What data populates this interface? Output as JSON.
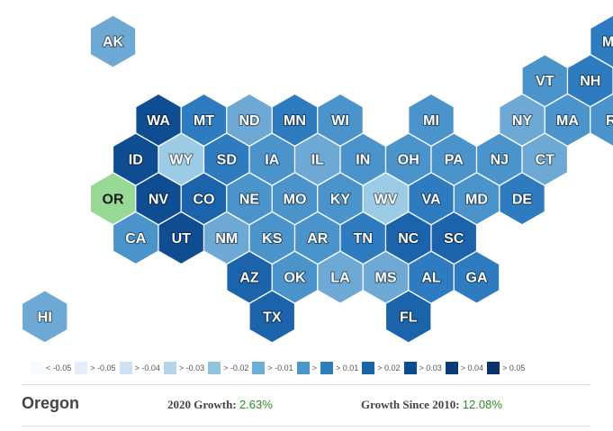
{
  "colors": {
    "c1": "#89b8dd",
    "c2": "#6ea8d5",
    "c3": "#4b93cb",
    "c4": "#2f7bbf",
    "c5": "#1b63ab",
    "c6": "#0f4d92",
    "c7": "#9ccbe6",
    "selected": "#98d996"
  },
  "states": [
    {
      "abbr": "AK",
      "row": 0,
      "col": 1,
      "color": "c2"
    },
    {
      "abbr": "ME",
      "row": 0,
      "col": 12,
      "color": "c4"
    },
    {
      "abbr": "VT",
      "row": 1,
      "col": 11,
      "color": "c3"
    },
    {
      "abbr": "NH",
      "row": 1,
      "col": 12,
      "color": "c4"
    },
    {
      "abbr": "WA",
      "row": 2,
      "col": 2,
      "color": "c6"
    },
    {
      "abbr": "MT",
      "row": 2,
      "col": 3,
      "color": "c4"
    },
    {
      "abbr": "ND",
      "row": 2,
      "col": 4,
      "color": "c2"
    },
    {
      "abbr": "MN",
      "row": 2,
      "col": 5,
      "color": "c4"
    },
    {
      "abbr": "WI",
      "row": 2,
      "col": 6,
      "color": "c3"
    },
    {
      "abbr": "MI",
      "row": 2,
      "col": 8,
      "color": "c3"
    },
    {
      "abbr": "NY",
      "row": 2,
      "col": 10,
      "color": "c2"
    },
    {
      "abbr": "MA",
      "row": 2,
      "col": 11,
      "color": "c3"
    },
    {
      "abbr": "RI",
      "row": 2,
      "col": 12,
      "color": "c3"
    },
    {
      "abbr": "ID",
      "row": 3,
      "col": 2,
      "color": "c6"
    },
    {
      "abbr": "WY",
      "row": 3,
      "col": 3,
      "color": "c7"
    },
    {
      "abbr": "SD",
      "row": 3,
      "col": 4,
      "color": "c4"
    },
    {
      "abbr": "IA",
      "row": 3,
      "col": 5,
      "color": "c3"
    },
    {
      "abbr": "IL",
      "row": 3,
      "col": 6,
      "color": "c2"
    },
    {
      "abbr": "IN",
      "row": 3,
      "col": 7,
      "color": "c3"
    },
    {
      "abbr": "OH",
      "row": 3,
      "col": 8,
      "color": "c3"
    },
    {
      "abbr": "PA",
      "row": 3,
      "col": 9,
      "color": "c3"
    },
    {
      "abbr": "NJ",
      "row": 3,
      "col": 10,
      "color": "c3"
    },
    {
      "abbr": "CT",
      "row": 3,
      "col": 11,
      "color": "c2"
    },
    {
      "abbr": "OR",
      "row": 4,
      "col": 1,
      "color": "selected"
    },
    {
      "abbr": "NV",
      "row": 4,
      "col": 2,
      "color": "c6"
    },
    {
      "abbr": "CO",
      "row": 4,
      "col": 3,
      "color": "c5"
    },
    {
      "abbr": "NE",
      "row": 4,
      "col": 4,
      "color": "c3"
    },
    {
      "abbr": "MO",
      "row": 4,
      "col": 5,
      "color": "c3"
    },
    {
      "abbr": "KY",
      "row": 4,
      "col": 6,
      "color": "c3"
    },
    {
      "abbr": "WV",
      "row": 4,
      "col": 7,
      "color": "c7"
    },
    {
      "abbr": "VA",
      "row": 4,
      "col": 8,
      "color": "c4"
    },
    {
      "abbr": "MD",
      "row": 4,
      "col": 9,
      "color": "c3"
    },
    {
      "abbr": "DE",
      "row": 4,
      "col": 10,
      "color": "c4"
    },
    {
      "abbr": "CA",
      "row": 5,
      "col": 2,
      "color": "c3"
    },
    {
      "abbr": "UT",
      "row": 5,
      "col": 3,
      "color": "c6"
    },
    {
      "abbr": "NM",
      "row": 5,
      "col": 4,
      "color": "c2"
    },
    {
      "abbr": "KS",
      "row": 5,
      "col": 5,
      "color": "c3"
    },
    {
      "abbr": "AR",
      "row": 5,
      "col": 6,
      "color": "c3"
    },
    {
      "abbr": "TN",
      "row": 5,
      "col": 7,
      "color": "c4"
    },
    {
      "abbr": "NC",
      "row": 5,
      "col": 8,
      "color": "c5"
    },
    {
      "abbr": "SC",
      "row": 5,
      "col": 9,
      "color": "c5"
    },
    {
      "abbr": "AZ",
      "row": 6,
      "col": 4,
      "color": "c5"
    },
    {
      "abbr": "OK",
      "row": 6,
      "col": 5,
      "color": "c3"
    },
    {
      "abbr": "LA",
      "row": 6,
      "col": 6,
      "color": "c2"
    },
    {
      "abbr": "MS",
      "row": 6,
      "col": 7,
      "color": "c2"
    },
    {
      "abbr": "AL",
      "row": 6,
      "col": 8,
      "color": "c4"
    },
    {
      "abbr": "GA",
      "row": 6,
      "col": 9,
      "color": "c4"
    },
    {
      "abbr": "HI",
      "row": 7,
      "col": 0,
      "color": "c2"
    },
    {
      "abbr": "TX",
      "row": 7,
      "col": 5,
      "color": "c5"
    },
    {
      "abbr": "FL",
      "row": 7,
      "col": 8,
      "color": "c5"
    }
  ],
  "legend": [
    {
      "label": "< -0.05",
      "color": "#f7fbff"
    },
    {
      "label": "> -0.05",
      "color": "#e3eef9"
    },
    {
      "label": "> -0.04",
      "color": "#cfe1f2"
    },
    {
      "label": "> -0.03",
      "color": "#b5d4e9"
    },
    {
      "label": "> -0.02",
      "color": "#93c4df"
    },
    {
      "label": "> -0.01",
      "color": "#6daed5"
    },
    {
      "label": ">",
      "color": "#4b97c9"
    },
    {
      "label": "> 0.01",
      "color": "#2f7ebc"
    },
    {
      "label": "> 0.02",
      "color": "#1864aa"
    },
    {
      "label": "> 0.03",
      "color": "#0a4a90"
    },
    {
      "label": "> 0.04",
      "color": "#083b7a"
    },
    {
      "label": "> 0.05",
      "color": "#08306b"
    }
  ],
  "info": {
    "state_name": "Oregon",
    "growth_2020_label": "2020 Growth:",
    "growth_2020_value": "2.63%",
    "growth_since_label": "Growth Since 2010:",
    "growth_since_value": "12.08%"
  }
}
